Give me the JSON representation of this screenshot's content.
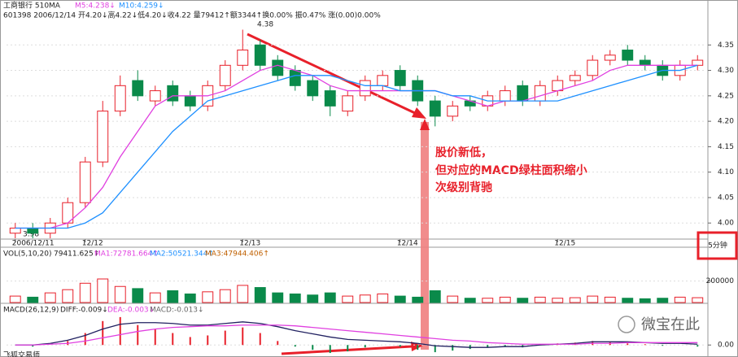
{
  "header": {
    "line1": [
      "工商银行 510MA"
    ],
    "line2": "601398 2006/12/14 开4.20↓高4.22↓低4.20↓收4.22 量79412↑额3344↑换0.00% 振0.47% 涨(0.00)0.00%"
  },
  "chart_data": [
    {
      "type": "candlestick",
      "title": "工商银行 510MA",
      "subtitle": "601398 2006/12/14 开4.20↓高4.22↓低4.20↓收4.22 量79412↑额3344↑换0.00% 振0.47% 涨(0.00)0.00%",
      "categories": [
        "2006/12/11",
        null,
        null,
        null,
        "12/12",
        null,
        null,
        null,
        null,
        null,
        null,
        null,
        null,
        "12/13",
        null,
        null,
        null,
        null,
        null,
        null,
        null,
        null,
        "12/14",
        null,
        null,
        null,
        null,
        null,
        null,
        null,
        null,
        "12/15",
        null,
        null,
        null,
        null,
        null,
        null,
        null,
        null
      ],
      "open": [
        3.98,
        3.99,
        3.98,
        4.0,
        4.04,
        4.12,
        4.22,
        4.28,
        4.24,
        4.27,
        4.25,
        4.23,
        4.27,
        4.31,
        4.35,
        4.32,
        4.3,
        4.28,
        4.26,
        4.22,
        4.25,
        4.27,
        4.3,
        4.28,
        4.24,
        4.21,
        4.24,
        4.23,
        4.24,
        4.27,
        4.24,
        4.26,
        4.28,
        4.29,
        4.32,
        4.34,
        4.32,
        4.31,
        4.29,
        4.31
      ],
      "high": [
        4.0,
        4.0,
        4.01,
        4.05,
        4.13,
        4.24,
        4.29,
        4.3,
        4.27,
        4.28,
        4.26,
        4.28,
        4.32,
        4.38,
        4.36,
        4.33,
        4.31,
        4.29,
        4.27,
        4.26,
        4.29,
        4.3,
        4.31,
        4.29,
        4.25,
        4.24,
        4.25,
        4.26,
        4.27,
        4.28,
        4.28,
        4.29,
        4.3,
        4.33,
        4.34,
        4.35,
        4.33,
        4.32,
        4.32,
        4.33
      ],
      "low": [
        3.97,
        3.97,
        3.97,
        3.99,
        4.03,
        4.11,
        4.21,
        4.24,
        4.23,
        4.23,
        4.22,
        4.22,
        4.26,
        4.3,
        4.3,
        4.28,
        4.26,
        4.24,
        4.21,
        4.21,
        4.24,
        4.26,
        4.26,
        4.23,
        4.19,
        4.2,
        4.22,
        4.22,
        4.23,
        4.23,
        4.23,
        4.25,
        4.27,
        4.28,
        4.31,
        4.31,
        4.3,
        4.28,
        4.28,
        4.3
      ],
      "close": [
        3.99,
        3.98,
        4.0,
        4.04,
        4.12,
        4.22,
        4.27,
        4.25,
        4.26,
        4.24,
        4.23,
        4.27,
        4.31,
        4.34,
        4.31,
        4.29,
        4.27,
        4.25,
        4.23,
        4.25,
        4.28,
        4.29,
        4.27,
        4.24,
        4.21,
        4.23,
        4.23,
        4.25,
        4.26,
        4.24,
        4.27,
        4.28,
        4.29,
        4.32,
        4.33,
        4.32,
        4.31,
        4.29,
        4.31,
        4.32
      ],
      "up_color": "#e8202a",
      "down_color": "#0a8a4a",
      "series": [
        {
          "name": "M5:4.238↓",
          "color": "#e040e0",
          "values": [
            3.99,
            3.99,
            3.99,
            4.0,
            4.03,
            4.07,
            4.13,
            4.18,
            4.23,
            4.25,
            4.25,
            4.25,
            4.26,
            4.28,
            4.3,
            4.31,
            4.3,
            4.29,
            4.27,
            4.26,
            4.26,
            4.26,
            4.26,
            4.26,
            4.26,
            4.25,
            4.24,
            4.23,
            4.24,
            4.24,
            4.25,
            4.26,
            4.27,
            4.28,
            4.3,
            4.31,
            4.31,
            4.31,
            4.31,
            4.31
          ]
        },
        {
          "name": "M10:4.259↓",
          "color": "#1e90ff",
          "values": [
            3.99,
            3.99,
            3.99,
            3.99,
            4.0,
            4.02,
            4.06,
            4.1,
            4.14,
            4.18,
            4.21,
            4.24,
            4.25,
            4.26,
            4.27,
            4.28,
            4.29,
            4.29,
            4.29,
            4.28,
            4.27,
            4.27,
            4.26,
            4.26,
            4.26,
            4.25,
            4.25,
            4.24,
            4.24,
            4.24,
            4.24,
            4.24,
            4.25,
            4.26,
            4.27,
            4.28,
            4.29,
            4.3,
            4.3,
            4.31
          ]
        }
      ],
      "ylim": [
        3.97,
        4.4
      ],
      "yticks": [
        4.35,
        {
          "value": 4.3,
          "label": "4.30"
        },
        4.25,
        {
          "value": 4.2,
          "label": "4.20"
        },
        4.15,
        {
          "value": 4.1,
          "label": "4.10"
        },
        4.05,
        {
          "value": 4,
          "label": "4.00"
        }
      ],
      "annotations": [
        "4.38",
        "3.98",
        "股价新低，",
        "但对应的MACD绿柱面积缩小",
        "次级别背驰"
      ],
      "period": "5分钟"
    },
    {
      "type": "bar",
      "title": "VOL(5,10,20)",
      "legend": [
        "79411.625↑",
        "MA1:72781.664↑",
        "MA2:50521.344↑",
        "MA3:47944.406↑"
      ],
      "values": [
        60000,
        50000,
        90000,
        120000,
        180000,
        220000,
        150000,
        130000,
        90000,
        110000,
        80000,
        100000,
        120000,
        160000,
        140000,
        90000,
        80000,
        70000,
        90000,
        60000,
        70000,
        80000,
        60000,
        50000,
        110000,
        60000,
        40000,
        40000,
        50000,
        40000,
        50000,
        40000,
        45000,
        60000,
        50000,
        40000,
        35000,
        40000,
        50000,
        45000
      ],
      "ylim": [
        0,
        410000
      ],
      "yticks": [
        200000
      ]
    },
    {
      "type": "macd",
      "title": "MACD(26,12,9)",
      "histogram_name": "MACD:-0.013↓",
      "values": [
        0,
        -0.002,
        0,
        0.005,
        0.015,
        0.03,
        0.035,
        0.025,
        0.02,
        0.015,
        0.01,
        0.012,
        0.018,
        0.022,
        0.015,
        0.005,
        -0.002,
        -0.006,
        -0.01,
        -0.008,
        -0.003,
        0,
        -0.002,
        -0.006,
        -0.009,
        -0.007,
        -0.005,
        -0.003,
        -0.002,
        -0.003,
        0.001,
        0.002,
        0.003,
        0.005,
        0.004,
        0.002,
        0.001,
        -0.001,
        0,
        -0.002
      ],
      "series": [
        {
          "name": "DIFF:-0.009↓",
          "color": "#202060",
          "values": [
            0,
            0,
            0.002,
            0.006,
            0.012,
            0.02,
            0.026,
            0.028,
            0.028,
            0.027,
            0.025,
            0.025,
            0.027,
            0.029,
            0.027,
            0.023,
            0.018,
            0.014,
            0.01,
            0.007,
            0.006,
            0.005,
            0.004,
            0.002,
            -0.001,
            -0.002,
            -0.003,
            -0.003,
            -0.002,
            -0.002,
            0,
            0.001,
            0.002,
            0.004,
            0.004,
            0.004,
            0.003,
            0.002,
            0.002,
            0.001
          ]
        },
        {
          "name": "DEA:-0.003↓",
          "color": "#e040e0",
          "values": [
            0,
            0,
            0.001,
            0.002,
            0.005,
            0.009,
            0.013,
            0.017,
            0.02,
            0.022,
            0.023,
            0.024,
            0.024,
            0.025,
            0.025,
            0.025,
            0.024,
            0.022,
            0.02,
            0.018,
            0.016,
            0.014,
            0.012,
            0.01,
            0.008,
            0.006,
            0.005,
            0.003,
            0.002,
            0.001,
            0.001,
            0.001,
            0.001,
            0.002,
            0.002,
            0.003,
            0.003,
            0.003,
            0.003,
            0.003
          ]
        }
      ],
      "ylim": [
        -0.013,
        0.04
      ],
      "yticks": [
        {
          "value": 0,
          "label": "0.00"
        }
      ]
    }
  ],
  "watermark": "微宝在此",
  "footer": "飞狐交易师"
}
